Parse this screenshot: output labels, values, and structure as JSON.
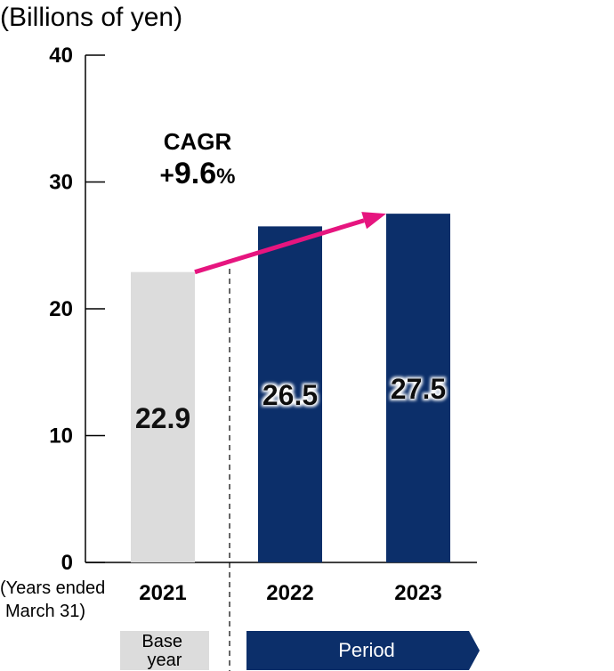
{
  "chart_data": {
    "type": "bar",
    "ylabel": "(Billions of yen)",
    "xlabel_lines": [
      "(Years ended",
      "March 31)"
    ],
    "ylim": [
      0,
      40
    ],
    "yticks": [
      0,
      10,
      20,
      30,
      40
    ],
    "categories": [
      "2021",
      "2022",
      "2023"
    ],
    "values": [
      22.9,
      26.5,
      27.5
    ],
    "value_labels": [
      "22.9",
      "26.5",
      "27.5"
    ],
    "annotation": {
      "line1": "CAGR",
      "line2_sign": "+",
      "line2_value": "9.6",
      "line2_unit": "%"
    },
    "base_label_lines": [
      "Base",
      "year"
    ],
    "period_label": "Period",
    "colors": {
      "base": "#dcdcdc",
      "period": "#0c2f6a",
      "arrow": "#e6157f",
      "axis": "#000000"
    }
  }
}
